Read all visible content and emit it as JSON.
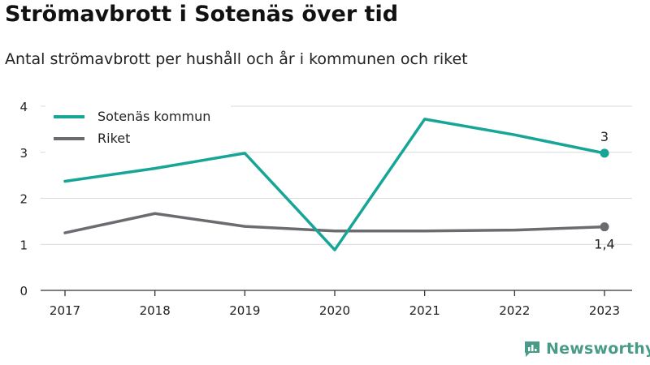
{
  "title": "Strömavbrott i Sotenäs över tid",
  "subtitle": "Antal strömavbrott per hushåll och år i kommunen och riket",
  "brand": {
    "name": "Newsworthy",
    "color": "#4a9a88"
  },
  "chart_data": {
    "type": "line",
    "categories": [
      "2017",
      "2018",
      "2019",
      "2020",
      "2021",
      "2022",
      "2023"
    ],
    "series": [
      {
        "name": "Sotenäs kommun",
        "color": "#16a596",
        "values": [
          2.37,
          2.65,
          2.98,
          0.88,
          3.72,
          3.38,
          2.98
        ],
        "end_label": "3"
      },
      {
        "name": "Riket",
        "color": "#6b6b70",
        "values": [
          1.25,
          1.67,
          1.39,
          1.29,
          1.29,
          1.31,
          1.38
        ],
        "end_label": "1,4"
      }
    ],
    "ylim": [
      0,
      4
    ],
    "yticks": [
      "0",
      "1",
      "2",
      "3",
      "4"
    ],
    "grid": true,
    "legend": "top-left",
    "xlabel": "",
    "ylabel": ""
  }
}
